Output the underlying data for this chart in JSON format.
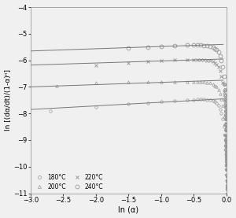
{
  "xlabel": "ln (α)",
  "ylabel": "ln [(dα/dt)/(1-α)ⁿ]",
  "xlim": [
    -3,
    0
  ],
  "ylim": [
    -11,
    -4
  ],
  "xticks": [
    -3,
    -2.5,
    -2,
    -1.5,
    -1,
    -0.5,
    0
  ],
  "yticks": [
    -11,
    -10,
    -9,
    -8,
    -7,
    -6,
    -5,
    -4
  ],
  "marker_color": "#999999",
  "line_color": "#777777",
  "background_color": "#f5f5f5",
  "tick_fontsize": 6,
  "label_fontsize": 7,
  "legend_fontsize": 5.5,
  "s180": {
    "label": "180°C",
    "x_pts": [
      -2.7,
      -2.0,
      -1.5,
      -1.2,
      -1.0,
      -0.8,
      -0.6,
      -0.5,
      -0.45,
      -0.4,
      -0.35,
      -0.3,
      -0.25,
      -0.2,
      -0.18,
      -0.15,
      -0.12,
      -0.1,
      -0.08,
      -0.06,
      -0.04
    ],
    "y_pts": [
      -7.9,
      -7.75,
      -7.65,
      -7.6,
      -7.55,
      -7.52,
      -7.5,
      -7.48,
      -7.47,
      -7.47,
      -7.47,
      -7.48,
      -7.5,
      -7.52,
      -7.55,
      -7.6,
      -7.7,
      -7.85,
      -8.0,
      -8.2,
      -8.5
    ],
    "line_x": [
      -3.0,
      -0.05
    ],
    "line_y": [
      -7.85,
      -7.45
    ]
  },
  "s200": {
    "label": "200°C",
    "x_pts": [
      -2.6,
      -2.0,
      -1.5,
      -1.2,
      -1.0,
      -0.8,
      -0.6,
      -0.5,
      -0.45,
      -0.4,
      -0.35,
      -0.3,
      -0.25,
      -0.2,
      -0.18,
      -0.15,
      -0.12,
      -0.1,
      -0.08,
      -0.06,
      -0.04
    ],
    "y_pts": [
      -6.95,
      -6.85,
      -6.82,
      -6.8,
      -6.8,
      -6.8,
      -6.8,
      -6.8,
      -6.8,
      -6.8,
      -6.82,
      -6.83,
      -6.85,
      -6.9,
      -6.95,
      -7.0,
      -7.1,
      -7.25,
      -7.45,
      -7.7,
      -8.1
    ],
    "line_x": [
      -3.0,
      -0.05
    ],
    "line_y": [
      -7.0,
      -6.75
    ]
  },
  "s220": {
    "label": "220°C",
    "x_pts": [
      -2.0,
      -1.5,
      -1.2,
      -1.0,
      -0.8,
      -0.6,
      -0.5,
      -0.45,
      -0.4,
      -0.35,
      -0.3,
      -0.25,
      -0.2,
      -0.18,
      -0.15,
      -0.12,
      -0.1,
      -0.08,
      -0.06,
      -0.04
    ],
    "y_pts": [
      -6.2,
      -6.1,
      -6.05,
      -6.0,
      -5.98,
      -5.97,
      -5.97,
      -5.97,
      -5.97,
      -5.98,
      -6.0,
      -6.02,
      -6.05,
      -6.1,
      -6.15,
      -6.25,
      -6.4,
      -6.6,
      -6.85,
      -7.2
    ],
    "line_x": [
      -3.0,
      -0.05
    ],
    "line_y": [
      -6.18,
      -5.95
    ]
  },
  "s240": {
    "label": "240°C",
    "x_pts": [
      -1.5,
      -1.2,
      -1.0,
      -0.8,
      -0.6,
      -0.5,
      -0.45,
      -0.4,
      -0.35,
      -0.3,
      -0.25,
      -0.2,
      -0.18,
      -0.15,
      -0.12,
      -0.1,
      -0.08,
      -0.06,
      -0.04
    ],
    "y_pts": [
      -5.55,
      -5.5,
      -5.47,
      -5.45,
      -5.43,
      -5.43,
      -5.43,
      -5.43,
      -5.44,
      -5.46,
      -5.48,
      -5.52,
      -5.56,
      -5.6,
      -5.7,
      -5.82,
      -6.0,
      -6.25,
      -6.6
    ],
    "line_x": [
      -3.0,
      -0.05
    ],
    "line_y": [
      -5.65,
      -5.4
    ]
  },
  "drop_x": [
    -0.03,
    -0.025,
    -0.02,
    -0.018,
    -0.016,
    -0.014,
    -0.012,
    -0.01,
    -0.008,
    -0.006,
    -0.004,
    -0.002,
    -0.001,
    0.0
  ],
  "drop_180_y": [
    -8.8,
    -9.0,
    -9.2,
    -9.35,
    -9.5,
    -9.65,
    -9.8,
    -9.95,
    -10.1,
    -10.3,
    -10.5,
    -10.7,
    -10.85,
    -11.0
  ],
  "drop_200_y": [
    -8.4,
    -8.6,
    -8.8,
    -8.95,
    -9.1,
    -9.25,
    -9.4,
    -9.55,
    -9.7,
    -9.9,
    -10.1,
    -10.35,
    -10.55,
    -10.75
  ],
  "drop_220_y": [
    -7.5,
    -7.7,
    -7.9,
    -8.05,
    -8.2,
    -8.35,
    -8.5,
    -8.65,
    -8.8,
    -9.0,
    -9.2,
    -9.45,
    -9.65,
    -9.85
  ],
  "drop_240_y": [
    -6.9,
    -7.1,
    -7.3,
    -7.45,
    -7.6,
    -7.75,
    -7.9,
    -8.05,
    -8.2,
    -8.4,
    -8.6,
    -8.85,
    -9.05,
    -9.25
  ]
}
